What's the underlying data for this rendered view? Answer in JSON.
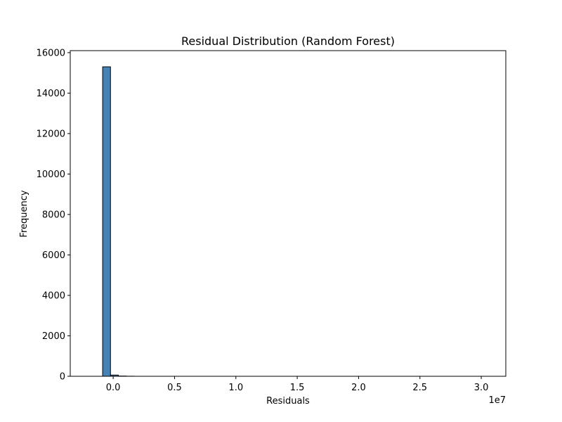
{
  "chart_data": {
    "type": "bar",
    "title": "Residual Distribution (Random Forest)",
    "xlabel": "Residuals",
    "ylabel": "Frequency",
    "x_offset_label": "1e7",
    "xlim": [
      -3500000,
      32000000
    ],
    "ylim": [
      0,
      16100
    ],
    "x_ticks": [
      0,
      5000000,
      10000000,
      15000000,
      20000000,
      25000000,
      30000000
    ],
    "x_tick_labels": [
      "0.0",
      "0.5",
      "1.0",
      "1.5",
      "2.0",
      "2.5",
      "3.0"
    ],
    "y_ticks": [
      0,
      2000,
      4000,
      6000,
      8000,
      10000,
      12000,
      14000,
      16000
    ],
    "y_tick_labels": [
      "0",
      "2000",
      "4000",
      "6000",
      "8000",
      "10000",
      "12000",
      "14000",
      "16000"
    ],
    "grid": false,
    "bar_color": "#4682b4",
    "edge_color": "#000000",
    "bins": [
      {
        "x0": -1500000,
        "x1": -860000,
        "value": 0
      },
      {
        "x0": -860000,
        "x1": -220000,
        "value": 15300
      },
      {
        "x0": -220000,
        "x1": 420000,
        "value": 60
      },
      {
        "x0": 420000,
        "x1": 1060000,
        "value": 12
      },
      {
        "x0": 1060000,
        "x1": 1700000,
        "value": 4
      }
    ],
    "x_range_min": -1500000,
    "x_range_max": 30500000
  }
}
